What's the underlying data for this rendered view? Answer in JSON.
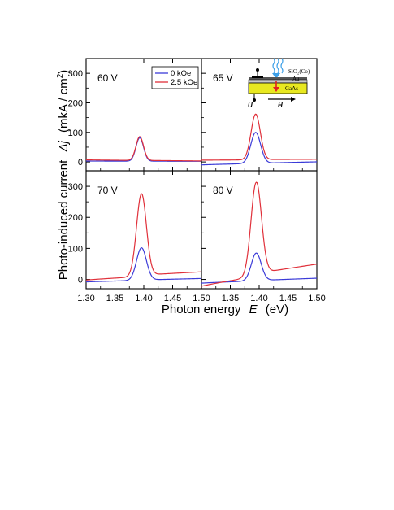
{
  "chart_data": {
    "type": "line",
    "layout": "2x2 panels, shared axes",
    "xlabel": "Photon energy",
    "xlabel_symbol": "E",
    "xlabel_unit": "(eV)",
    "ylabel": "Photo-induced current",
    "ylabel_symbol": "Δj",
    "ylabel_unit": "(mkA / cm",
    "ylabel_unit_sup": "2",
    "ylabel_unit_end": ")",
    "xlim": [
      1.3,
      1.5
    ],
    "ylim": [
      -30,
      350
    ],
    "x_ticks_left": [
      "1.30",
      "1.35",
      "1.40",
      "1.45",
      "1.50"
    ],
    "x_ticks_right": [
      "1.35",
      "1.40",
      "1.45",
      "1.50"
    ],
    "y_ticks": [
      "0",
      "100",
      "200",
      "300"
    ],
    "legend": {
      "placement": "top-right of first panel",
      "entries": [
        {
          "label": "0 kOe",
          "color": "#3b3bd8"
        },
        {
          "label": "2.5 kOe",
          "color": "#e0303a"
        }
      ]
    },
    "inset": {
      "placement": "top-right panel",
      "labels": {
        "coating": "SiO₂(Co)",
        "metal": "Au",
        "substrate": "GaAs",
        "voltage": "U",
        "field": "H"
      }
    },
    "panels": [
      {
        "label": "60 V",
        "series": [
          {
            "name": "0 kOe",
            "color": "#3b3bd8",
            "baseline_left": 3,
            "baseline_right": 2,
            "peak": 82,
            "peak_x": 1.393,
            "width": 0.0065,
            "tail": 1
          },
          {
            "name": "2.5 kOe",
            "color": "#e0303a",
            "baseline_left": 7,
            "baseline_right": 3,
            "peak": 86,
            "peak_x": 1.393,
            "width": 0.0065,
            "tail": 2
          }
        ]
      },
      {
        "label": "65 V",
        "series": [
          {
            "name": "0 kOe",
            "color": "#3b3bd8",
            "baseline_left": -10,
            "baseline_right": 0,
            "peak": 100,
            "peak_x": 1.394,
            "width": 0.0085,
            "tail": 2
          },
          {
            "name": "2.5 kOe",
            "color": "#e0303a",
            "baseline_left": 6,
            "baseline_right": 8,
            "peak": 162,
            "peak_x": 1.394,
            "width": 0.008,
            "tail": 6
          }
        ]
      },
      {
        "label": "70 V",
        "series": [
          {
            "name": "0 kOe",
            "color": "#3b3bd8",
            "baseline_left": -8,
            "baseline_right": 2,
            "peak": 102,
            "peak_x": 1.396,
            "width": 0.0085,
            "tail": 6
          },
          {
            "name": "2.5 kOe",
            "color": "#e0303a",
            "baseline_left": -2,
            "baseline_right": 20,
            "peak": 276,
            "peak_x": 1.396,
            "width": 0.0085,
            "tail": 25
          }
        ]
      },
      {
        "label": "80 V",
        "series": [
          {
            "name": "0 kOe",
            "color": "#3b3bd8",
            "baseline_left": -12,
            "baseline_right": 3,
            "peak": 85,
            "peak_x": 1.395,
            "width": 0.0085,
            "tail": 5
          },
          {
            "name": "2.5 kOe",
            "color": "#e0303a",
            "baseline_left": -22,
            "baseline_right": 40,
            "peak": 313,
            "peak_x": 1.395,
            "width": 0.009,
            "tail": 52
          }
        ]
      }
    ]
  }
}
